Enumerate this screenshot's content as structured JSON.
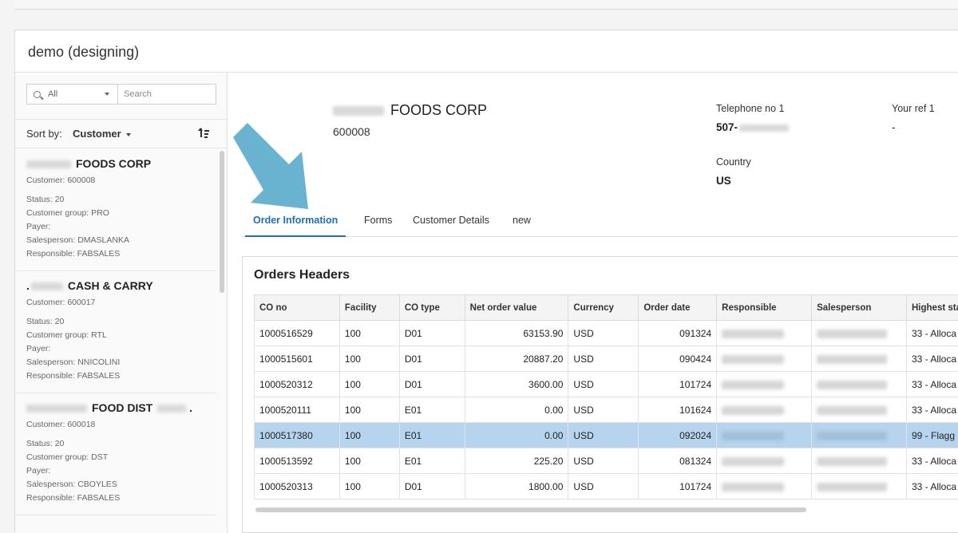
{
  "app": {
    "title": "demo (designing)"
  },
  "sidebar": {
    "filter_value": "All",
    "search_placeholder": "Search",
    "sort_label": "Sort by:",
    "sort_value": "Customer",
    "customers": [
      {
        "name": "FOODS CORP",
        "customer_line": "Customer: 600008",
        "status": "Status: 20",
        "group": "Customer group: PRO",
        "payer": "Payer:",
        "salesperson": "Salesperson: DMASLANKA",
        "responsible": "Responsible: FABSALES"
      },
      {
        "name": "CASH & CARRY",
        "customer_line": "Customer: 600017",
        "status": "Status: 20",
        "group": "Customer group: RTL",
        "payer": "Payer:",
        "salesperson": "Salesperson: NNICOLINI",
        "responsible": "Responsible: FABSALES"
      },
      {
        "name": "FOOD DIST",
        "customer_line": "Customer: 600018",
        "status": "Status: 20",
        "group": "Customer group: DST",
        "payer": "Payer:",
        "salesperson": "Salesperson: CBOYLES",
        "responsible": "Responsible: FABSALES"
      }
    ]
  },
  "header": {
    "company_name": "FOODS CORP",
    "customer_number": "600008",
    "telephone_label": "Telephone no 1",
    "telephone_value": "507-",
    "your_ref_label": "Your ref 1",
    "your_ref_value": "-",
    "country_label": "Country",
    "country_value": "US"
  },
  "tabs": [
    "Order Information",
    "Forms",
    "Customer Details",
    "new"
  ],
  "orders": {
    "title": "Orders Headers",
    "columns": [
      "CO no",
      "Facility",
      "CO type",
      "Net order value",
      "Currency",
      "Order date",
      "Responsible",
      "Salesperson",
      "Highest sta"
    ],
    "rows": [
      {
        "co_no": "1000516529",
        "facility": "100",
        "co_type": "D01",
        "net_value": "63153.90",
        "currency": "USD",
        "order_date": "091324",
        "highest_status": "33 - Alloca"
      },
      {
        "co_no": "1000515601",
        "facility": "100",
        "co_type": "D01",
        "net_value": "20887.20",
        "currency": "USD",
        "order_date": "090424",
        "highest_status": "33 - Alloca"
      },
      {
        "co_no": "1000520312",
        "facility": "100",
        "co_type": "D01",
        "net_value": "3600.00",
        "currency": "USD",
        "order_date": "101724",
        "highest_status": "33 - Alloca"
      },
      {
        "co_no": "1000520111",
        "facility": "100",
        "co_type": "E01",
        "net_value": "0.00",
        "currency": "USD",
        "order_date": "101624",
        "highest_status": "33 - Alloca"
      },
      {
        "co_no": "1000517380",
        "facility": "100",
        "co_type": "E01",
        "net_value": "0.00",
        "currency": "USD",
        "order_date": "092024",
        "highest_status": "99 - Flagg"
      },
      {
        "co_no": "1000513592",
        "facility": "100",
        "co_type": "E01",
        "net_value": "225.20",
        "currency": "USD",
        "order_date": "081324",
        "highest_status": "33 - Alloca"
      },
      {
        "co_no": "1000520313",
        "facility": "100",
        "co_type": "D01",
        "net_value": "1800.00",
        "currency": "USD",
        "order_date": "101724",
        "highest_status": "33 - Alloca"
      }
    ]
  },
  "colors": {
    "accent": "#1e6fb8",
    "selected_row": "#b7d4ee",
    "arrow": "#6ab3d0"
  }
}
